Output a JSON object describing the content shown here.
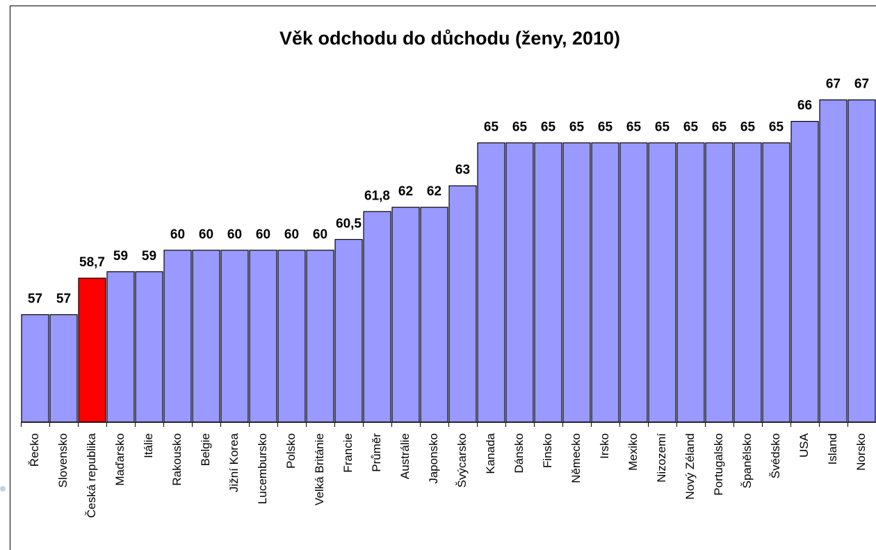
{
  "chart_data": {
    "type": "bar",
    "title": "Věk odchodu do důchodu (ženy, 2010)",
    "categories": [
      "Řecko",
      "Slovensko",
      "Česká republika",
      "Maďarsko",
      "Itálie",
      "Rakousko",
      "Belgie",
      "Jižní Korea",
      "Lucembursko",
      "Polsko",
      "Velká Británie",
      "Francie",
      "Průměr",
      "Austrálie",
      "Japonsko",
      "Švýcarsko",
      "Kanada",
      "Dánsko",
      "Finsko",
      "Německo",
      "Irsko",
      "Mexiko",
      "Nizozemí",
      "Nový Zéland",
      "Portugalsko",
      "Španělsko",
      "Švédsko",
      "USA",
      "Island",
      "Norsko"
    ],
    "values": [
      57,
      57,
      58.7,
      59,
      59,
      60,
      60,
      60,
      60,
      60,
      60,
      60.5,
      61.8,
      62,
      62,
      63,
      65,
      65,
      65,
      65,
      65,
      65,
      65,
      65,
      65,
      65,
      65,
      66,
      67,
      67
    ],
    "value_labels": [
      "57",
      "57",
      "58,7",
      "59",
      "59",
      "60",
      "60",
      "60",
      "60",
      "60",
      "60",
      "60,5",
      "61,8",
      "62",
      "62",
      "63",
      "65",
      "65",
      "65",
      "65",
      "65",
      "65",
      "65",
      "65",
      "65",
      "65",
      "65",
      "66",
      "67",
      "67"
    ],
    "colors": [
      "#9999ff",
      "#9999ff",
      "#ff0000",
      "#9999ff",
      "#9999ff",
      "#9999ff",
      "#9999ff",
      "#9999ff",
      "#9999ff",
      "#9999ff",
      "#9999ff",
      "#9999ff",
      "#9999ff",
      "#9999ff",
      "#9999ff",
      "#9999ff",
      "#9999ff",
      "#9999ff",
      "#9999ff",
      "#9999ff",
      "#9999ff",
      "#9999ff",
      "#9999ff",
      "#9999ff",
      "#9999ff",
      "#9999ff",
      "#9999ff",
      "#9999ff",
      "#9999ff",
      "#9999ff"
    ],
    "ylim": [
      52,
      70
    ]
  }
}
